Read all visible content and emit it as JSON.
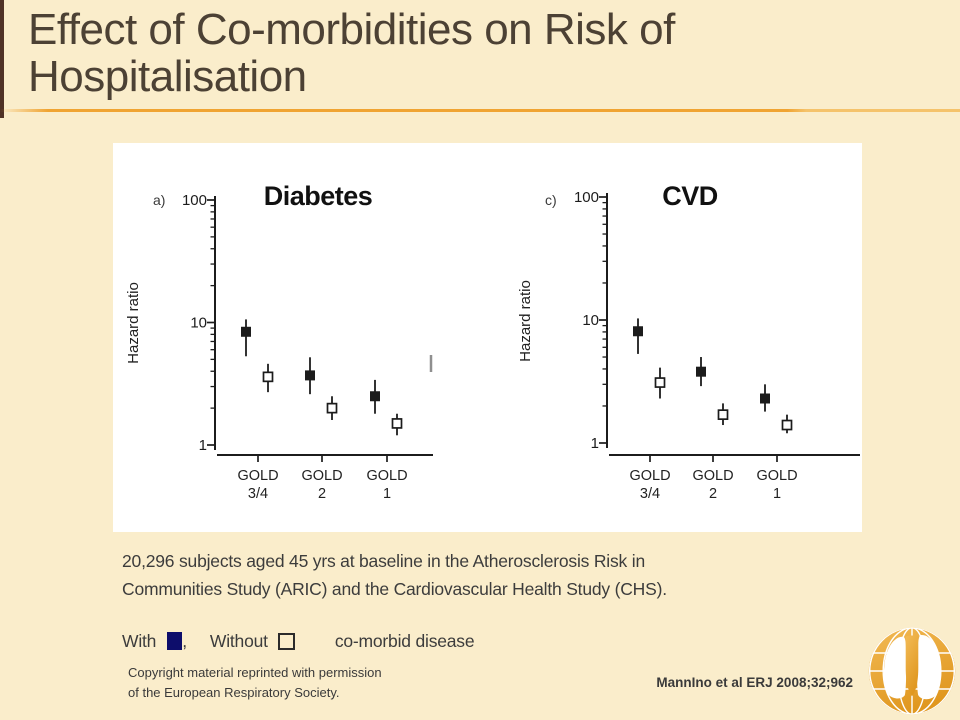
{
  "slide": {
    "title_line1": "Effect of Co-morbidities on Risk of",
    "title_line2": "Hospitalisation",
    "body_line1": "20,296 subjects aged 45 yrs at baseline in the Atherosclerosis Risk in",
    "body_line2": "Communities Study (ARIC) and the Cardiovascular Health Study (CHS).",
    "legend": {
      "with_label": "With",
      "comma": ",",
      "without_label": "Without",
      "suffix_label": "co-morbid disease"
    },
    "copyright_line1": "Copyright material reprinted with permission",
    "copyright_line2": "of the European Respiratory Society.",
    "citation": "MannIno et al ERJ 2008;32;962",
    "logo_name": "ers-globe-lungs-logo"
  },
  "colors": {
    "background_cream": "#FAEDCB",
    "title_brown": "#4C4134",
    "accent_orange": "#F0A432",
    "stripe_maroon": "#4F3226",
    "legend_navy": "#0D0D6B",
    "chart_ink": "#1C1C1C",
    "logo_orange": "#E8A22C"
  },
  "chart_data": [
    {
      "type": "scatter",
      "panel_label": "a)",
      "title": "Diabetes",
      "ylabel": "Hazard ratio",
      "yscale": "log",
      "ylim": [
        1,
        100
      ],
      "ytick_labels": [
        "1",
        "10",
        "100"
      ],
      "categories": [
        "GOLD 3/4",
        "GOLD 2",
        "GOLD 1"
      ],
      "series": [
        {
          "name": "With co-morbid disease",
          "marker": "filled-square",
          "values": [
            8.4,
            3.7,
            2.5
          ],
          "ci_low": [
            5.3,
            2.6,
            1.8
          ],
          "ci_high": [
            10.6,
            5.2,
            3.4
          ]
        },
        {
          "name": "Without co-morbid disease",
          "marker": "open-square",
          "values": [
            3.6,
            2.0,
            1.5
          ],
          "ci_low": [
            2.7,
            1.6,
            1.2
          ],
          "ci_high": [
            4.6,
            2.5,
            1.8
          ]
        }
      ]
    },
    {
      "type": "scatter",
      "panel_label": "c)",
      "title": "CVD",
      "ylabel": "Hazard ratio",
      "yscale": "log",
      "ylim": [
        1,
        100
      ],
      "ytick_labels": [
        "1",
        "10",
        "100"
      ],
      "categories": [
        "GOLD 3/4",
        "GOLD 2",
        "GOLD 1"
      ],
      "series": [
        {
          "name": "With co-morbid disease",
          "marker": "filled-square",
          "values": [
            8.1,
            3.8,
            2.3
          ],
          "ci_low": [
            5.3,
            2.9,
            1.8
          ],
          "ci_high": [
            10.3,
            5.0,
            3.0
          ]
        },
        {
          "name": "Without co-morbid disease",
          "marker": "open-square",
          "values": [
            3.1,
            1.7,
            1.4
          ],
          "ci_low": [
            2.3,
            1.4,
            1.2
          ],
          "ci_high": [
            4.1,
            2.1,
            1.7
          ]
        }
      ]
    }
  ]
}
